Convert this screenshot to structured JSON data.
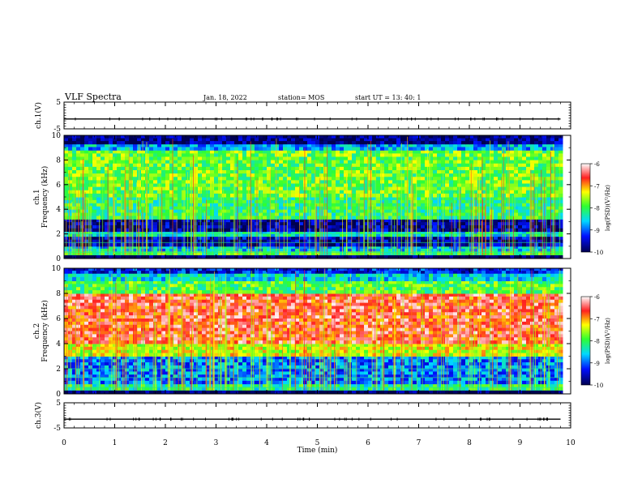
{
  "header": {
    "title": "VLF Spectra",
    "date": "Jan. 18, 2022",
    "station": "station= MOS",
    "start_ut": "start  UT =   13: 40: 1"
  },
  "colors": {
    "blue_dark": "#00005a",
    "blue": "#0030ff",
    "cyan": "#00e0ff",
    "green": "#30ff30",
    "yellow": "#ffff00",
    "red": "#ff2020",
    "white": "#ffffff"
  },
  "chart_data": [
    {
      "type": "line",
      "panel": "ch1-voltage",
      "ylabel": "ch.1(V)",
      "ylim": [
        -5,
        5
      ],
      "yticks": [
        {
          "v": 5,
          "label": "5"
        },
        {
          "v": -5,
          "label": "-5"
        }
      ],
      "x": [
        0,
        9.8
      ],
      "y": [
        -1.3,
        -1.3
      ]
    },
    {
      "type": "heatmap",
      "panel": "ch1-spectrogram",
      "ylabel": "ch.1\nFrequency (kHz)",
      "ylim": [
        0,
        10
      ],
      "yticks": [
        {
          "v": 0,
          "label": "0"
        },
        {
          "v": 2,
          "label": "2"
        },
        {
          "v": 4,
          "label": "4"
        },
        {
          "v": 6,
          "label": "6"
        },
        {
          "v": 8,
          "label": "8"
        },
        {
          "v": 10,
          "label": "10"
        }
      ],
      "xlim": [
        0,
        9.8
      ],
      "bands_khz": [
        {
          "f0": 0,
          "f1": 0.3,
          "level": -10
        },
        {
          "f0": 0.3,
          "f1": 0.6,
          "level": -8
        },
        {
          "f0": 0.6,
          "f1": 1.0,
          "level": -8.6
        },
        {
          "f0": 1.0,
          "f1": 1.8,
          "level": -9.6
        },
        {
          "f0": 1.8,
          "f1": 2.2,
          "level": -8.4
        },
        {
          "f0": 2.2,
          "f1": 3.2,
          "level": -9.7
        },
        {
          "f0": 3.2,
          "f1": 5.0,
          "level": -8.1
        },
        {
          "f0": 5.0,
          "f1": 8.8,
          "level": -7.8
        },
        {
          "f0": 8.8,
          "f1": 9.3,
          "level": -8.7
        },
        {
          "f0": 9.3,
          "f1": 10,
          "level": -9.8
        }
      ],
      "colorbar": {
        "label": "log(PSD)(V²/Hz)",
        "range": [
          -10,
          -6
        ],
        "ticks": [
          {
            "v": -6,
            "label": "-6"
          },
          {
            "v": -7,
            "label": "-7"
          },
          {
            "v": -8,
            "label": "-8"
          },
          {
            "v": -9,
            "label": "-9"
          },
          {
            "v": -10,
            "label": "-10"
          }
        ]
      }
    },
    {
      "type": "heatmap",
      "panel": "ch2-spectrogram",
      "ylabel": "ch.2\nFrequency (kHz)",
      "ylim": [
        0,
        10
      ],
      "yticks": [
        {
          "v": 0,
          "label": "0"
        },
        {
          "v": 2,
          "label": "2"
        },
        {
          "v": 4,
          "label": "4"
        },
        {
          "v": 6,
          "label": "6"
        },
        {
          "v": 8,
          "label": "8"
        },
        {
          "v": 10,
          "label": "10"
        }
      ],
      "xlim": [
        0,
        9.8
      ],
      "bands_khz": [
        {
          "f0": 0,
          "f1": 0.3,
          "level": -10
        },
        {
          "f0": 0.3,
          "f1": 0.8,
          "level": -8.2
        },
        {
          "f0": 0.8,
          "f1": 3.0,
          "level": -8.9
        },
        {
          "f0": 3.0,
          "f1": 4.0,
          "level": -7.4
        },
        {
          "f0": 4.0,
          "f1": 8.0,
          "level": -6.6
        },
        {
          "f0": 8.0,
          "f1": 9.0,
          "level": -7.9
        },
        {
          "f0": 9.0,
          "f1": 9.6,
          "level": -8.5
        },
        {
          "f0": 9.6,
          "f1": 10,
          "level": -9.3
        }
      ],
      "colorbar": {
        "label": "log(PSD)(V²/Hz)",
        "range": [
          -10,
          -6
        ],
        "ticks": [
          {
            "v": -6,
            "label": "-6"
          },
          {
            "v": -7,
            "label": "-7"
          },
          {
            "v": -8,
            "label": "-8"
          },
          {
            "v": -9,
            "label": "-9"
          },
          {
            "v": -10,
            "label": "-10"
          }
        ]
      }
    },
    {
      "type": "line",
      "panel": "ch3-voltage",
      "ylabel": "ch.3(V)",
      "ylim": [
        -5,
        5
      ],
      "yticks": [
        {
          "v": 5,
          "label": "5"
        },
        {
          "v": -5,
          "label": "-5"
        }
      ],
      "x": [
        0,
        9.8
      ],
      "y": [
        -1.5,
        -1.5
      ]
    }
  ],
  "xaxis": {
    "label": "Time  (min)",
    "range": [
      0,
      10
    ],
    "ticks": [
      {
        "v": 0,
        "label": "0"
      },
      {
        "v": 1,
        "label": "1"
      },
      {
        "v": 2,
        "label": "2"
      },
      {
        "v": 3,
        "label": "3"
      },
      {
        "v": 4,
        "label": "4"
      },
      {
        "v": 5,
        "label": "5"
      },
      {
        "v": 6,
        "label": "6"
      },
      {
        "v": 7,
        "label": "7"
      },
      {
        "v": 8,
        "label": "8"
      },
      {
        "v": 9,
        "label": "9"
      },
      {
        "v": 10,
        "label": "10"
      }
    ]
  }
}
